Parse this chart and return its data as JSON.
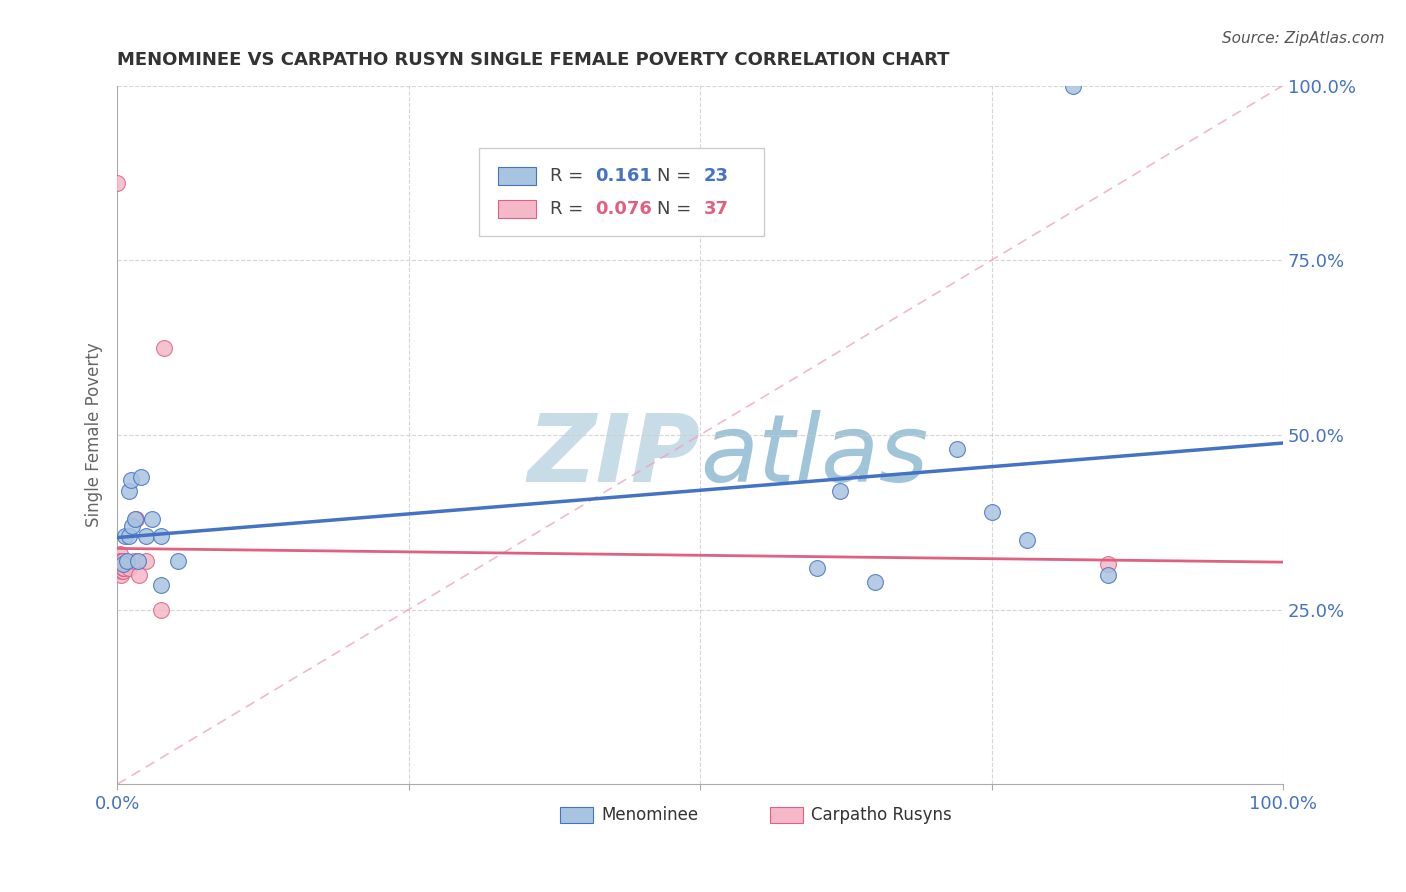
{
  "title": "MENOMINEE VS CARPATHO RUSYN SINGLE FEMALE POVERTY CORRELATION CHART",
  "source": "Source: ZipAtlas.com",
  "ylabel": "Single Female Poverty",
  "R_menominee": 0.161,
  "N_menominee": 23,
  "R_carpatho": 0.076,
  "N_carpatho": 37,
  "menominee_x": [
    0.005,
    0.007,
    0.008,
    0.01,
    0.01,
    0.012,
    0.013,
    0.015,
    0.018,
    0.02,
    0.025,
    0.03,
    0.038,
    0.038,
    0.052,
    0.6,
    0.62,
    0.65,
    0.72,
    0.75,
    0.78,
    0.82,
    0.85
  ],
  "menominee_y": [
    0.315,
    0.355,
    0.32,
    0.355,
    0.42,
    0.435,
    0.37,
    0.38,
    0.32,
    0.44,
    0.355,
    0.38,
    0.355,
    0.285,
    0.32,
    0.31,
    0.42,
    0.29,
    0.48,
    0.39,
    0.35,
    1.0,
    0.3
  ],
  "carpatho_x": [
    0.0,
    0.0,
    0.001,
    0.001,
    0.001,
    0.002,
    0.002,
    0.002,
    0.002,
    0.003,
    0.003,
    0.003,
    0.003,
    0.003,
    0.003,
    0.003,
    0.004,
    0.004,
    0.004,
    0.004,
    0.004,
    0.004,
    0.005,
    0.005,
    0.005,
    0.005,
    0.006,
    0.007,
    0.009,
    0.01,
    0.014,
    0.016,
    0.019,
    0.025,
    0.038,
    0.04,
    0.85
  ],
  "carpatho_y": [
    0.86,
    0.305,
    0.31,
    0.315,
    0.32,
    0.31,
    0.315,
    0.32,
    0.33,
    0.305,
    0.31,
    0.315,
    0.32,
    0.3,
    0.32,
    0.315,
    0.305,
    0.31,
    0.315,
    0.32,
    0.315,
    0.32,
    0.305,
    0.31,
    0.315,
    0.32,
    0.31,
    0.315,
    0.315,
    0.31,
    0.32,
    0.38,
    0.3,
    0.32,
    0.25,
    0.625,
    0.315
  ],
  "menominee_color": "#a8c4e0",
  "menominee_line_color": "#4472c4",
  "carpatho_color": "#f4b8c8",
  "carpatho_line_color": "#e06080",
  "diagonal_color": "#f0a0b8",
  "grid_color": "#cccccc",
  "title_color": "#333333",
  "axis_label_color": "#4472c4",
  "background_color": "#ffffff",
  "watermark_color": "#d0e4f0",
  "xlim": [
    0.0,
    1.0
  ],
  "ylim": [
    0.0,
    1.0
  ],
  "legend_R_color": "#4472c4",
  "legend_R2_color": "#e06080"
}
